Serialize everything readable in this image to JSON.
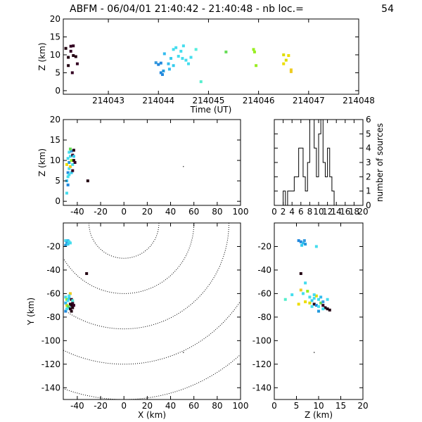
{
  "title": {
    "prefix": "ABFM - 06/04/01 21:40:42 - 21:40:48 - nb loc.=",
    "count": "54"
  },
  "chart_data": [
    {
      "id": "time_z",
      "type": "scatter",
      "xlabel": "Time (UT)",
      "ylabel": "Z (km)",
      "xlim": [
        214042.1,
        214048
      ],
      "ylim": [
        -1,
        20
      ],
      "xticks": [
        214043,
        214044,
        214045,
        214046,
        214047,
        214048
      ],
      "yticks": [
        0,
        5,
        10,
        15,
        20
      ],
      "points": [
        [
          214042.15,
          11.8,
          "#220011"
        ],
        [
          214042.2,
          9.3,
          "#220011"
        ],
        [
          214042.25,
          12.4,
          "#330022"
        ],
        [
          214042.25,
          11.0,
          "#330022"
        ],
        [
          214042.3,
          12.5,
          "#330022"
        ],
        [
          214042.3,
          9.8,
          "#220011"
        ],
        [
          214042.35,
          9.5,
          "#220011"
        ],
        [
          214042.38,
          7.5,
          "#330022"
        ],
        [
          214042.2,
          7.0,
          "#220011"
        ],
        [
          214042.28,
          5.0,
          "#330022"
        ],
        [
          214043.95,
          7.8,
          "#3399dd"
        ],
        [
          214044.0,
          7.3,
          "#2288dd"
        ],
        [
          214044.05,
          7.7,
          "#2288dd"
        ],
        [
          214044.05,
          5.0,
          "#2288dd"
        ],
        [
          214044.08,
          4.5,
          "#2288dd"
        ],
        [
          214044.1,
          5.5,
          "#2299dd"
        ],
        [
          214044.12,
          10.3,
          "#33bbee"
        ],
        [
          214044.2,
          7.5,
          "#33bbee"
        ],
        [
          214044.22,
          6.0,
          "#33bbee"
        ],
        [
          214044.25,
          9.0,
          "#33ccee"
        ],
        [
          214044.3,
          7.0,
          "#33ccee"
        ],
        [
          214044.3,
          11.5,
          "#44ddee"
        ],
        [
          214044.35,
          12.0,
          "#44ddee"
        ],
        [
          214044.4,
          9.6,
          "#44ddee"
        ],
        [
          214044.45,
          11.0,
          "#44ddee"
        ],
        [
          214044.48,
          9.0,
          "#44ddee"
        ],
        [
          214044.5,
          12.5,
          "#44ddee"
        ],
        [
          214044.55,
          8.5,
          "#44ddee"
        ],
        [
          214044.6,
          7.5,
          "#44ddee"
        ],
        [
          214044.65,
          9.3,
          "#44ddee"
        ],
        [
          214044.75,
          11.5,
          "#55eedd"
        ],
        [
          214044.85,
          2.5,
          "#55eecc"
        ],
        [
          214045.35,
          10.8,
          "#66dd55"
        ],
        [
          214045.9,
          11.5,
          "#99ee22"
        ],
        [
          214045.92,
          10.8,
          "#99ee22"
        ],
        [
          214045.95,
          7.0,
          "#99ee22"
        ],
        [
          214046.5,
          10.0,
          "#dddd00"
        ],
        [
          214046.55,
          8.5,
          "#dddd00"
        ],
        [
          214046.5,
          7.5,
          "#eedd00"
        ],
        [
          214046.6,
          9.8,
          "#eedd00"
        ],
        [
          214046.65,
          5.8,
          "#eecc22"
        ],
        [
          214046.65,
          5.3,
          "#eecc22"
        ]
      ]
    },
    {
      "id": "x_z",
      "type": "scatter",
      "xlabel": "",
      "ylabel": "Z (km)",
      "xlim": [
        -52,
        100
      ],
      "ylim": [
        -1,
        20
      ],
      "xticks": [
        -40,
        -20,
        0,
        20,
        40,
        60,
        80,
        100
      ],
      "yticks": [
        0,
        5,
        10,
        15,
        20
      ],
      "points": [
        [
          -49,
          2,
          "#44ddee"
        ],
        [
          -49,
          5,
          "#33bbee"
        ],
        [
          -48,
          6,
          "#44ddee"
        ],
        [
          -48,
          7,
          "#2288dd"
        ],
        [
          -47,
          8,
          "#44ddee"
        ],
        [
          -49,
          9,
          "#eedd00"
        ],
        [
          -47,
          9.5,
          "#2299dd"
        ],
        [
          -45,
          10,
          "#99ee22"
        ],
        [
          -48,
          10.5,
          "#44ddee"
        ],
        [
          -46,
          11,
          "#44ddee"
        ],
        [
          -44,
          11.3,
          "#330022"
        ],
        [
          -47,
          12,
          "#44ddee"
        ],
        [
          -45,
          12.3,
          "#3399dd"
        ],
        [
          -43,
          12.5,
          "#220011"
        ],
        [
          -46,
          8.5,
          "#eecc22"
        ],
        [
          -44,
          9,
          "#44ddee"
        ],
        [
          -43,
          10,
          "#220011"
        ],
        [
          -42,
          9.5,
          "#330022"
        ],
        [
          -45,
          7,
          "#33ccee"
        ],
        [
          -47,
          6.5,
          "#44ddee"
        ],
        [
          -44,
          7.5,
          "#330022"
        ],
        [
          -48,
          4,
          "#2288dd"
        ],
        [
          -43,
          11,
          "#33ccee"
        ],
        [
          -46,
          12.8,
          "#66dd55"
        ],
        [
          -31,
          5,
          "#220011"
        ],
        [
          51,
          8.5,
          "#000000"
        ]
      ]
    },
    {
      "id": "z_hist",
      "type": "bar",
      "xlabel": "",
      "ylabel": "number of sources",
      "xlim": [
        0,
        20
      ],
      "ylim": [
        0,
        6
      ],
      "xticks": [
        0,
        2,
        4,
        6,
        8,
        10,
        12,
        14,
        16,
        18,
        20
      ],
      "yticks": [
        0,
        1,
        2,
        3,
        4,
        5,
        6
      ],
      "bin_width": 0.5,
      "bin_start": 2.0,
      "values": [
        1,
        0,
        1,
        1,
        1,
        2,
        2,
        4,
        4,
        2,
        1,
        3,
        6,
        6,
        4,
        2,
        5,
        6,
        3,
        2,
        4,
        2,
        1
      ]
    },
    {
      "id": "x_y",
      "type": "scatter",
      "xlabel": "X (km)",
      "ylabel": "Y (km)",
      "xlim": [
        -52,
        100
      ],
      "ylim": [
        -150,
        0
      ],
      "xticks": [
        -40,
        -20,
        0,
        20,
        40,
        60,
        80,
        100
      ],
      "yticks": [
        -20,
        -40,
        -60,
        -80,
        -100,
        -120,
        -140
      ],
      "contours": [
        30,
        60,
        90,
        120,
        150
      ],
      "points": [
        [
          -50,
          -15,
          "#44ddee"
        ],
        [
          -49,
          -17,
          "#3399dd"
        ],
        [
          -48,
          -15,
          "#33bbee"
        ],
        [
          -47,
          -16,
          "#44ddee"
        ],
        [
          -46,
          -17,
          "#44ddee"
        ],
        [
          -50,
          -19,
          "#2299dd"
        ],
        [
          -48,
          -18,
          "#33ccee"
        ],
        [
          -32,
          -43,
          "#220011"
        ],
        [
          -50,
          -63,
          "#44ddee"
        ],
        [
          -49,
          -65,
          "#99ee22"
        ],
        [
          -48,
          -66,
          "#44ddee"
        ],
        [
          -47,
          -64,
          "#33ccee"
        ],
        [
          -45,
          -65,
          "#330022"
        ],
        [
          -44,
          -68,
          "#330022"
        ],
        [
          -46,
          -69,
          "#220011"
        ],
        [
          -45,
          -70,
          "#220011"
        ],
        [
          -47,
          -72,
          "#44ddee"
        ],
        [
          -49,
          -70,
          "#eedd00"
        ],
        [
          -50,
          -68,
          "#33bbee"
        ],
        [
          -48,
          -71,
          "#66dd55"
        ],
        [
          -44,
          -72,
          "#220011"
        ],
        [
          -46,
          -73,
          "#220011"
        ],
        [
          -45,
          -75,
          "#220011"
        ],
        [
          -50,
          -75,
          "#2288dd"
        ],
        [
          -46,
          -60,
          "#eecc22"
        ],
        [
          -47,
          -62,
          "#44ddee"
        ],
        [
          -44,
          -66,
          "#55eedd"
        ],
        [
          -43,
          -70,
          "#330022"
        ],
        [
          -49,
          -73,
          "#44ddee"
        ],
        [
          51,
          -110,
          "#000000"
        ]
      ]
    },
    {
      "id": "z_y",
      "type": "scatter",
      "xlabel": "Z (km)",
      "ylabel": "",
      "xlim": [
        0,
        20
      ],
      "ylim": [
        -150,
        0
      ],
      "xticks": [
        0,
        5,
        10,
        15,
        20
      ],
      "yticks": [
        -20,
        -40,
        -60,
        -80,
        -100,
        -120,
        -140
      ],
      "points": [
        [
          5.5,
          -15,
          "#2288dd"
        ],
        [
          6,
          -16,
          "#2288dd"
        ],
        [
          6.5,
          -17,
          "#33bbee"
        ],
        [
          7,
          -18,
          "#2299dd"
        ],
        [
          6.2,
          -19,
          "#33ccee"
        ],
        [
          6.8,
          -15,
          "#3399dd"
        ],
        [
          9.5,
          -20,
          "#44ddee"
        ],
        [
          6,
          -43,
          "#220011"
        ],
        [
          7,
          -51,
          "#44ddee"
        ],
        [
          2.5,
          -65,
          "#55eecc"
        ],
        [
          4,
          -61,
          "#44ddee"
        ],
        [
          6,
          -57,
          "#eecc22"
        ],
        [
          6.5,
          -60,
          "#44ddee"
        ],
        [
          7.5,
          -58,
          "#99ee22"
        ],
        [
          5.5,
          -69,
          "#eedd00"
        ],
        [
          8,
          -63,
          "#44ddee"
        ],
        [
          8.5,
          -66,
          "#33ccee"
        ],
        [
          9,
          -64,
          "#44ddee"
        ],
        [
          9.5,
          -62,
          "#dddd00"
        ],
        [
          10,
          -65,
          "#44ddee"
        ],
        [
          10.5,
          -63,
          "#33bbee"
        ],
        [
          8,
          -68,
          "#dddd00"
        ],
        [
          9,
          -69,
          "#220011"
        ],
        [
          9.5,
          -70,
          "#2288dd"
        ],
        [
          10,
          -71,
          "#44ddee"
        ],
        [
          10.5,
          -68,
          "#66dd55"
        ],
        [
          11,
          -70,
          "#330022"
        ],
        [
          11.5,
          -72,
          "#220011"
        ],
        [
          12,
          -73,
          "#220011"
        ],
        [
          12.5,
          -74,
          "#220011"
        ],
        [
          11,
          -73,
          "#44ddee"
        ],
        [
          7,
          -67,
          "#eedd00"
        ],
        [
          8.5,
          -71,
          "#44ddee"
        ],
        [
          10,
          -75,
          "#2299dd"
        ],
        [
          9,
          -61,
          "#44ddee"
        ],
        [
          12,
          -65,
          "#44ddee"
        ],
        [
          11,
          -67,
          "#3399dd"
        ],
        [
          9,
          -110,
          "#000000"
        ]
      ]
    }
  ]
}
